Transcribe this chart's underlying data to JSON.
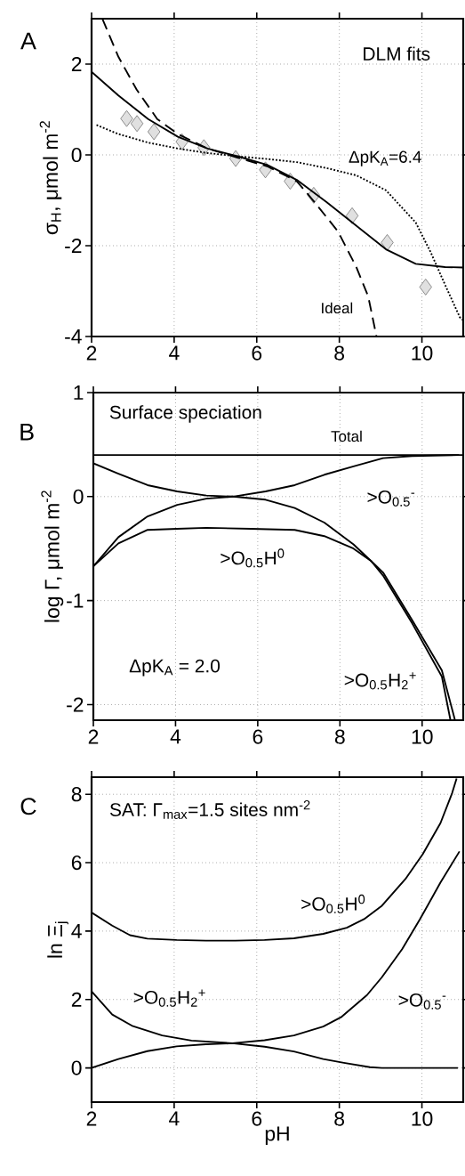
{
  "chart_data": [
    {
      "type": "line",
      "title": "A",
      "ylabel": "σ$_{H}$, μmol m$^{-2}$",
      "xlim": [
        2,
        11
      ],
      "ylim": [
        -4,
        3
      ],
      "xticks": [
        2,
        4,
        6,
        8,
        10
      ],
      "yticks": [
        -4,
        -2,
        0,
        2
      ],
      "grid": true,
      "annotations": [
        "DLM fits"
      ],
      "series": [
        {
          "type": "scatter",
          "marker": "diamond",
          "color": "#e0e0e0",
          "x": [
            2.85,
            3.1,
            3.51,
            4.19,
            4.72,
            5.49,
            6.21,
            6.81,
            7.38,
            8.31,
            9.16,
            10.09
          ],
          "values": [
            0.8,
            0.69,
            0.51,
            0.29,
            0.16,
            -0.08,
            -0.33,
            -0.58,
            -0.89,
            -1.34,
            -1.93,
            -2.91
          ]
        },
        {
          "line_style": "solid",
          "color": "#000000",
          "x": [
            2,
            2.65,
            3.37,
            4.09,
            4.81,
            5.53,
            6.25,
            6.97,
            7.69,
            8.41,
            9.13,
            9.85,
            10.56,
            11
          ],
          "values": [
            1.83,
            1.31,
            0.79,
            0.4,
            0.14,
            -0.03,
            -0.22,
            -0.55,
            -1.04,
            -1.56,
            -2.08,
            -2.4,
            -2.47,
            -2.48
          ]
        },
        {
          "name": "Ideal",
          "line_style": "dashed",
          "color": "#000000",
          "x": [
            2.26,
            2.65,
            3.09,
            3.59,
            4.09,
            4.81,
            5.53,
            6.25,
            6.97,
            7.4,
            7.97,
            8.41,
            8.7,
            8.9
          ],
          "values": [
            3.0,
            2.16,
            1.44,
            0.79,
            0.46,
            0.14,
            -0.06,
            -0.25,
            -0.58,
            -1.04,
            -1.69,
            -2.47,
            -3.12,
            -4.0
          ]
        },
        {
          "name": "ΔpK$_{A}$=6.4",
          "line_style": "dotted",
          "color": "#000000",
          "x": [
            2.12,
            2.65,
            3.37,
            4.09,
            4.81,
            5.53,
            6.25,
            6.97,
            7.69,
            8.41,
            9.13,
            9.85,
            10.21,
            10.56,
            10.92,
            11
          ],
          "values": [
            0.66,
            0.46,
            0.27,
            0.14,
            0.04,
            -0.03,
            -0.09,
            -0.16,
            -0.29,
            -0.45,
            -0.78,
            -1.49,
            -2.14,
            -2.86,
            -3.58,
            -3.64
          ]
        }
      ]
    },
    {
      "type": "line",
      "title": "B",
      "ylabel": "log Γ, μmol m$^{-2}$",
      "xlim": [
        2,
        11
      ],
      "ylim": [
        -2.15,
        1
      ],
      "xticks": [
        2,
        4,
        6,
        8,
        10
      ],
      "yticks": [
        -2,
        -1,
        0,
        1
      ],
      "grid": true,
      "annotations": [
        "Surface speciation",
        "ΔpK$_{A}$ = 2.0"
      ],
      "series": [
        {
          "name": "Total",
          "line_style": "solid",
          "color": "#000000",
          "x": [
            2,
            11
          ],
          "values": [
            0.4,
            0.4
          ]
        },
        {
          "name": ">O$_{0.5}$$^{-}$",
          "line_style": "solid",
          "color": "#000000",
          "x": [
            2,
            2.61,
            3.32,
            4.04,
            4.75,
            5.4,
            6.19,
            6.9,
            7.62,
            8.33,
            9.05,
            9.76,
            10.9
          ],
          "values": [
            -0.67,
            -0.39,
            -0.19,
            -0.08,
            -0.02,
            0.0,
            0.05,
            0.11,
            0.21,
            0.29,
            0.37,
            0.39,
            0.4
          ]
        },
        {
          "name": ">O$_{0.5}$H$^{0}$",
          "line_style": "solid",
          "color": "#000000",
          "x": [
            2,
            2.61,
            3.32,
            4.04,
            4.75,
            5.83,
            6.9,
            7.62,
            8.33,
            8.76,
            9.05,
            9.76,
            10.48,
            10.8
          ],
          "values": [
            -0.67,
            -0.45,
            -0.32,
            -0.31,
            -0.3,
            -0.31,
            -0.32,
            -0.38,
            -0.5,
            -0.62,
            -0.73,
            -1.19,
            -1.67,
            -2.15
          ]
        },
        {
          "name": ">O$_{0.5}$H$_{2}$$^{+}$",
          "line_style": "solid",
          "color": "#000000",
          "x": [
            2,
            2.61,
            3.32,
            4.04,
            4.75,
            5.4,
            6.19,
            6.9,
            7.62,
            8.33,
            8.76,
            9.05,
            9.76,
            10.48,
            10.69
          ],
          "values": [
            0.32,
            0.22,
            0.11,
            0.05,
            0.01,
            0.0,
            -0.03,
            -0.11,
            -0.25,
            -0.46,
            -0.62,
            -0.76,
            -1.22,
            -1.73,
            -2.15
          ]
        }
      ]
    },
    {
      "type": "line",
      "title": "C",
      "xlabel": "pH",
      "ylabel": "ln Ξ$_{j}$",
      "xlim": [
        2,
        11
      ],
      "ylim": [
        -1,
        8.5
      ],
      "xticks": [
        2,
        4,
        6,
        8,
        10
      ],
      "yticks": [
        0,
        2,
        4,
        6,
        8
      ],
      "grid": true,
      "annotations": [
        "SAT: Γ$_{max}$=1.5 sites nm$^{-2}$"
      ],
      "series": [
        {
          "name": ">O$_{0.5}$H$^{0}$",
          "line_style": "solid",
          "color": "#000000",
          "x": [
            2,
            2.5,
            2.93,
            3.35,
            4.06,
            4.77,
            5.48,
            6.19,
            6.9,
            7.61,
            8.18,
            8.6,
            9.03,
            9.6,
            10.02,
            10.45,
            10.73,
            10.84
          ],
          "values": [
            4.54,
            4.16,
            3.88,
            3.78,
            3.74,
            3.72,
            3.72,
            3.74,
            3.79,
            3.92,
            4.1,
            4.35,
            4.74,
            5.52,
            6.25,
            7.16,
            8.03,
            8.46
          ]
        },
        {
          "name": ">O$_{0.5}$H$_{2}$$^{+}$",
          "line_style": "solid",
          "color": "#000000",
          "x": [
            2,
            2.5,
            3.0,
            3.71,
            4.42,
            5.41,
            6.19,
            6.9,
            7.61,
            8.11,
            8.74,
            9.03,
            10.87
          ],
          "values": [
            2.24,
            1.56,
            1.22,
            0.95,
            0.8,
            0.72,
            0.62,
            0.48,
            0.26,
            0.15,
            0.02,
            0.0,
            0.0
          ]
        },
        {
          "name": ">O$_{0.5}$$^{-}$",
          "line_style": "solid",
          "color": "#000000",
          "x": [
            2,
            2.65,
            3.35,
            4.06,
            4.77,
            5.41,
            6.19,
            6.9,
            7.61,
            8.04,
            8.67,
            9.03,
            9.52,
            9.95,
            10.45,
            10.91
          ],
          "values": [
            0.0,
            0.26,
            0.49,
            0.63,
            0.69,
            0.72,
            0.81,
            0.95,
            1.21,
            1.48,
            2.13,
            2.65,
            3.47,
            4.34,
            5.42,
            6.33
          ]
        }
      ]
    }
  ]
}
